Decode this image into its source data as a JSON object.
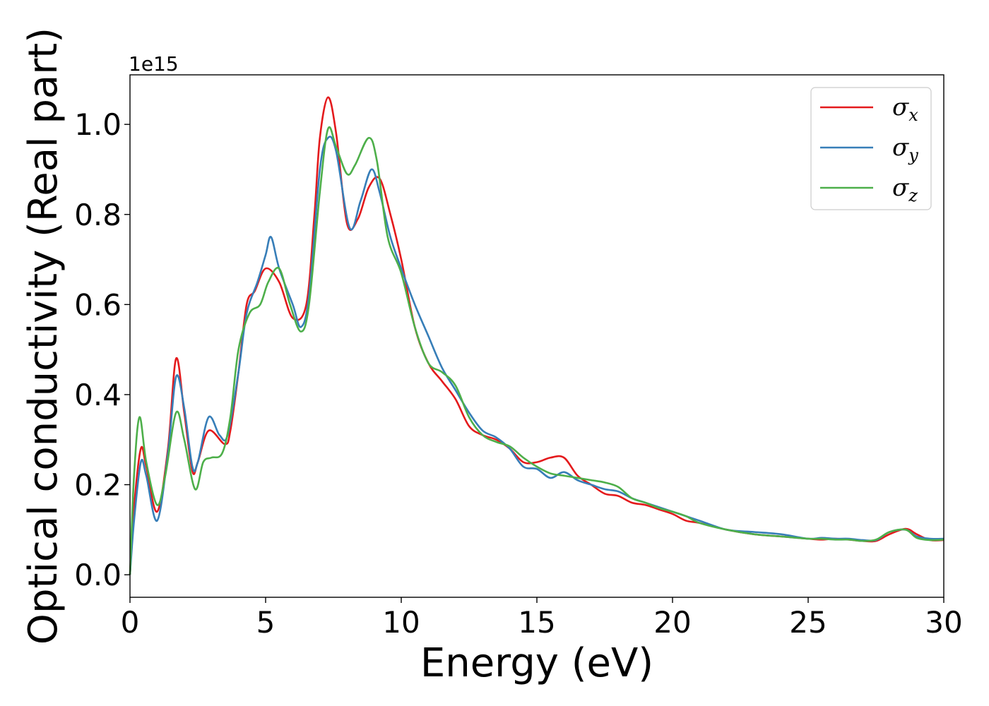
{
  "chart_data": {
    "type": "line",
    "xlabel": "Energy (eV)",
    "ylabel": "Optical conductivity (Real part)",
    "y_offset_label": "1e15",
    "xlim": [
      0,
      30
    ],
    "ylim": [
      -0.05,
      1.11
    ],
    "x_ticks": [
      0,
      5,
      10,
      15,
      20,
      25,
      30
    ],
    "x_tick_labels": [
      "0",
      "5",
      "10",
      "15",
      "20",
      "25",
      "30"
    ],
    "y_ticks": [
      0.0,
      0.2,
      0.4,
      0.6,
      0.8,
      1.0
    ],
    "y_tick_labels": [
      "0.0",
      "0.2",
      "0.4",
      "0.6",
      "0.8",
      "1.0"
    ],
    "grid": false,
    "legend_position": "top-right",
    "series": [
      {
        "name": "σ",
        "subscript": "x",
        "color": "#e41a1c",
        "points": [
          [
            0,
            0
          ],
          [
            0.15,
            0.15
          ],
          [
            0.4,
            0.28
          ],
          [
            0.6,
            0.24
          ],
          [
            1.0,
            0.14
          ],
          [
            1.4,
            0.28
          ],
          [
            1.7,
            0.48
          ],
          [
            2.0,
            0.36
          ],
          [
            2.3,
            0.23
          ],
          [
            2.5,
            0.25
          ],
          [
            2.9,
            0.32
          ],
          [
            3.5,
            0.29
          ],
          [
            3.7,
            0.32
          ],
          [
            4.0,
            0.45
          ],
          [
            4.3,
            0.6
          ],
          [
            4.6,
            0.63
          ],
          [
            5.0,
            0.68
          ],
          [
            5.5,
            0.65
          ],
          [
            6.0,
            0.57
          ],
          [
            6.5,
            0.6
          ],
          [
            6.8,
            0.8
          ],
          [
            7.0,
            0.97
          ],
          [
            7.3,
            1.06
          ],
          [
            7.6,
            0.98
          ],
          [
            8.0,
            0.78
          ],
          [
            8.4,
            0.79
          ],
          [
            8.8,
            0.86
          ],
          [
            9.2,
            0.88
          ],
          [
            9.6,
            0.8
          ],
          [
            10.0,
            0.7
          ],
          [
            10.5,
            0.55
          ],
          [
            11.0,
            0.47
          ],
          [
            11.5,
            0.43
          ],
          [
            12.0,
            0.39
          ],
          [
            12.5,
            0.33
          ],
          [
            13.0,
            0.31
          ],
          [
            13.5,
            0.3
          ],
          [
            14.0,
            0.28
          ],
          [
            14.5,
            0.25
          ],
          [
            15.0,
            0.25
          ],
          [
            15.5,
            0.26
          ],
          [
            16.0,
            0.26
          ],
          [
            16.5,
            0.22
          ],
          [
            17.0,
            0.2
          ],
          [
            17.5,
            0.18
          ],
          [
            18.0,
            0.175
          ],
          [
            18.5,
            0.16
          ],
          [
            19.0,
            0.155
          ],
          [
            19.5,
            0.145
          ],
          [
            20.0,
            0.135
          ],
          [
            20.5,
            0.12
          ],
          [
            21.0,
            0.115
          ],
          [
            22.0,
            0.1
          ],
          [
            23.0,
            0.09
          ],
          [
            24.0,
            0.085
          ],
          [
            25.0,
            0.08
          ],
          [
            25.5,
            0.078
          ],
          [
            26.0,
            0.08
          ],
          [
            26.5,
            0.078
          ],
          [
            27.0,
            0.075
          ],
          [
            27.5,
            0.075
          ],
          [
            28.0,
            0.09
          ],
          [
            28.6,
            0.102
          ],
          [
            29.0,
            0.09
          ],
          [
            29.5,
            0.077
          ],
          [
            30.0,
            0.077
          ]
        ]
      },
      {
        "name": "σ",
        "subscript": "y",
        "color": "#377eb8",
        "points": [
          [
            0,
            0
          ],
          [
            0.15,
            0.12
          ],
          [
            0.4,
            0.25
          ],
          [
            0.6,
            0.22
          ],
          [
            1.0,
            0.12
          ],
          [
            1.4,
            0.27
          ],
          [
            1.7,
            0.44
          ],
          [
            2.0,
            0.37
          ],
          [
            2.3,
            0.24
          ],
          [
            2.5,
            0.25
          ],
          [
            2.9,
            0.35
          ],
          [
            3.3,
            0.31
          ],
          [
            3.6,
            0.31
          ],
          [
            4.0,
            0.45
          ],
          [
            4.3,
            0.58
          ],
          [
            4.7,
            0.65
          ],
          [
            5.0,
            0.71
          ],
          [
            5.2,
            0.75
          ],
          [
            5.5,
            0.68
          ],
          [
            6.0,
            0.6
          ],
          [
            6.3,
            0.55
          ],
          [
            6.6,
            0.62
          ],
          [
            7.0,
            0.9
          ],
          [
            7.3,
            0.97
          ],
          [
            7.6,
            0.94
          ],
          [
            8.1,
            0.77
          ],
          [
            8.5,
            0.83
          ],
          [
            8.9,
            0.9
          ],
          [
            9.2,
            0.85
          ],
          [
            9.6,
            0.75
          ],
          [
            10.0,
            0.68
          ],
          [
            10.5,
            0.6
          ],
          [
            11.0,
            0.53
          ],
          [
            11.5,
            0.46
          ],
          [
            12.0,
            0.41
          ],
          [
            12.5,
            0.36
          ],
          [
            13.0,
            0.32
          ],
          [
            13.5,
            0.305
          ],
          [
            14.0,
            0.28
          ],
          [
            14.5,
            0.24
          ],
          [
            15.0,
            0.235
          ],
          [
            15.5,
            0.215
          ],
          [
            16.0,
            0.228
          ],
          [
            16.5,
            0.21
          ],
          [
            17.0,
            0.2
          ],
          [
            17.5,
            0.19
          ],
          [
            18.0,
            0.185
          ],
          [
            18.5,
            0.17
          ],
          [
            19.0,
            0.16
          ],
          [
            19.5,
            0.15
          ],
          [
            20.0,
            0.14
          ],
          [
            20.5,
            0.13
          ],
          [
            21.0,
            0.12
          ],
          [
            22.0,
            0.1
          ],
          [
            23.0,
            0.095
          ],
          [
            24.0,
            0.09
          ],
          [
            25.0,
            0.08
          ],
          [
            25.5,
            0.082
          ],
          [
            26.0,
            0.08
          ],
          [
            26.5,
            0.08
          ],
          [
            27.0,
            0.077
          ],
          [
            27.5,
            0.077
          ],
          [
            28.0,
            0.095
          ],
          [
            28.6,
            0.1
          ],
          [
            29.0,
            0.085
          ],
          [
            29.5,
            0.08
          ],
          [
            30.0,
            0.08
          ]
        ]
      },
      {
        "name": "σ",
        "subscript": "z",
        "color": "#4daf4a",
        "points": [
          [
            0,
            0
          ],
          [
            0.15,
            0.22
          ],
          [
            0.35,
            0.35
          ],
          [
            0.6,
            0.25
          ],
          [
            1.0,
            0.155
          ],
          [
            1.3,
            0.22
          ],
          [
            1.7,
            0.36
          ],
          [
            2.0,
            0.3
          ],
          [
            2.4,
            0.19
          ],
          [
            2.7,
            0.25
          ],
          [
            3.0,
            0.26
          ],
          [
            3.4,
            0.27
          ],
          [
            3.7,
            0.35
          ],
          [
            4.0,
            0.5
          ],
          [
            4.4,
            0.58
          ],
          [
            4.8,
            0.6
          ],
          [
            5.1,
            0.65
          ],
          [
            5.5,
            0.68
          ],
          [
            5.9,
            0.6
          ],
          [
            6.3,
            0.54
          ],
          [
            6.6,
            0.6
          ],
          [
            7.0,
            0.85
          ],
          [
            7.3,
            0.99
          ],
          [
            7.6,
            0.95
          ],
          [
            8.0,
            0.89
          ],
          [
            8.3,
            0.91
          ],
          [
            8.8,
            0.97
          ],
          [
            9.1,
            0.92
          ],
          [
            9.5,
            0.75
          ],
          [
            10.0,
            0.67
          ],
          [
            10.5,
            0.55
          ],
          [
            11.0,
            0.47
          ],
          [
            11.5,
            0.45
          ],
          [
            12.0,
            0.42
          ],
          [
            12.5,
            0.35
          ],
          [
            13.0,
            0.31
          ],
          [
            13.5,
            0.295
          ],
          [
            14.0,
            0.285
          ],
          [
            14.5,
            0.26
          ],
          [
            15.0,
            0.24
          ],
          [
            15.5,
            0.225
          ],
          [
            16.0,
            0.22
          ],
          [
            16.5,
            0.215
          ],
          [
            17.0,
            0.21
          ],
          [
            17.5,
            0.205
          ],
          [
            18.0,
            0.195
          ],
          [
            18.5,
            0.17
          ],
          [
            19.0,
            0.16
          ],
          [
            19.5,
            0.148
          ],
          [
            20.0,
            0.14
          ],
          [
            20.5,
            0.13
          ],
          [
            21.0,
            0.115
          ],
          [
            22.0,
            0.1
          ],
          [
            23.0,
            0.09
          ],
          [
            24.0,
            0.085
          ],
          [
            25.0,
            0.08
          ],
          [
            25.5,
            0.08
          ],
          [
            26.0,
            0.078
          ],
          [
            26.5,
            0.078
          ],
          [
            27.0,
            0.075
          ],
          [
            27.5,
            0.078
          ],
          [
            28.0,
            0.095
          ],
          [
            28.6,
            0.1
          ],
          [
            29.0,
            0.082
          ],
          [
            29.5,
            0.077
          ],
          [
            30.0,
            0.078
          ]
        ]
      }
    ]
  }
}
